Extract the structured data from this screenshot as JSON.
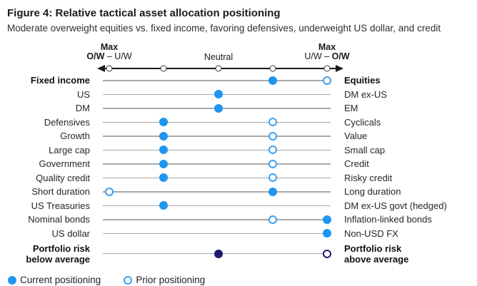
{
  "title": "Figure 4: Relative tactical asset allocation positioning",
  "subtitle": "Moderate overweight equities vs. fixed income, favoring defensives, underweight US dollar, and credit",
  "colors": {
    "current_blue": "#1e96f0",
    "prior_blue_ring": "#3da1f0",
    "risk_navy": "#1b1a6e",
    "row_line": "#a9a9a9",
    "axis_black": "#1a1a1a"
  },
  "axis": {
    "left_max": "Max",
    "left_bold": "O/W",
    "left_rest": " – U/W",
    "center": "Neutral",
    "right_max": "Max",
    "right_rest": "U/W – ",
    "right_bold": "O/W",
    "tick_count": 5
  },
  "legend": [
    {
      "label": "Current positioning",
      "type": "filled"
    },
    {
      "label": "Prior positioning",
      "type": "open"
    }
  ],
  "chart_data": {
    "type": "scatter",
    "subtype": "diverging-dot-positioning",
    "title": "Figure 4: Relative tactical asset allocation positioning",
    "scale": {
      "positions": [
        1,
        2,
        3,
        4,
        5
      ],
      "neutral": 3,
      "left_end_label": "Max O/W – U/W",
      "center_label": "Neutral",
      "right_end_label": "Max U/W – O/W"
    },
    "legend_position": "bottom-left",
    "rows": [
      {
        "left": "Fixed income",
        "right": "Equities",
        "bold": true,
        "palette": "blue",
        "current": 4,
        "prior": 5
      },
      {
        "left": "US",
        "right": "DM ex-US",
        "bold": false,
        "palette": "blue",
        "current": 3,
        "prior": null
      },
      {
        "left": "DM",
        "right": "EM",
        "bold": false,
        "palette": "blue",
        "current": 3,
        "prior": null
      },
      {
        "left": "Defensives",
        "right": "Cyclicals",
        "bold": false,
        "palette": "blue",
        "current": 2,
        "prior": 4
      },
      {
        "left": "Growth",
        "right": "Value",
        "bold": false,
        "palette": "blue",
        "current": 2,
        "prior": 4
      },
      {
        "left": "Large cap",
        "right": "Small cap",
        "bold": false,
        "palette": "blue",
        "current": 2,
        "prior": 4
      },
      {
        "left": "Government",
        "right": "Credit",
        "bold": false,
        "palette": "blue",
        "current": 2,
        "prior": 4
      },
      {
        "left": "Quality credit",
        "right": "Risky credit",
        "bold": false,
        "palette": "blue",
        "current": 2,
        "prior": 4
      },
      {
        "left": "Short duration",
        "right": "Long duration",
        "bold": false,
        "palette": "blue",
        "current": 4,
        "prior": 1
      },
      {
        "left": "US Treasuries",
        "right": "DM ex-US govt (hedged)",
        "bold": false,
        "palette": "blue",
        "current": 2,
        "prior": null
      },
      {
        "left": "Nominal bonds",
        "right": "Inflation-linked bonds",
        "bold": false,
        "palette": "blue",
        "current": 5,
        "prior": 4
      },
      {
        "left": "US dollar",
        "right": "Non-USD FX",
        "bold": false,
        "palette": "blue",
        "current": 5,
        "prior": null
      },
      {
        "left": [
          "Portfolio risk",
          "below average"
        ],
        "right": [
          "Portfolio risk",
          "above average"
        ],
        "bold": true,
        "palette": "navy",
        "current": 3,
        "prior": 5
      }
    ]
  }
}
